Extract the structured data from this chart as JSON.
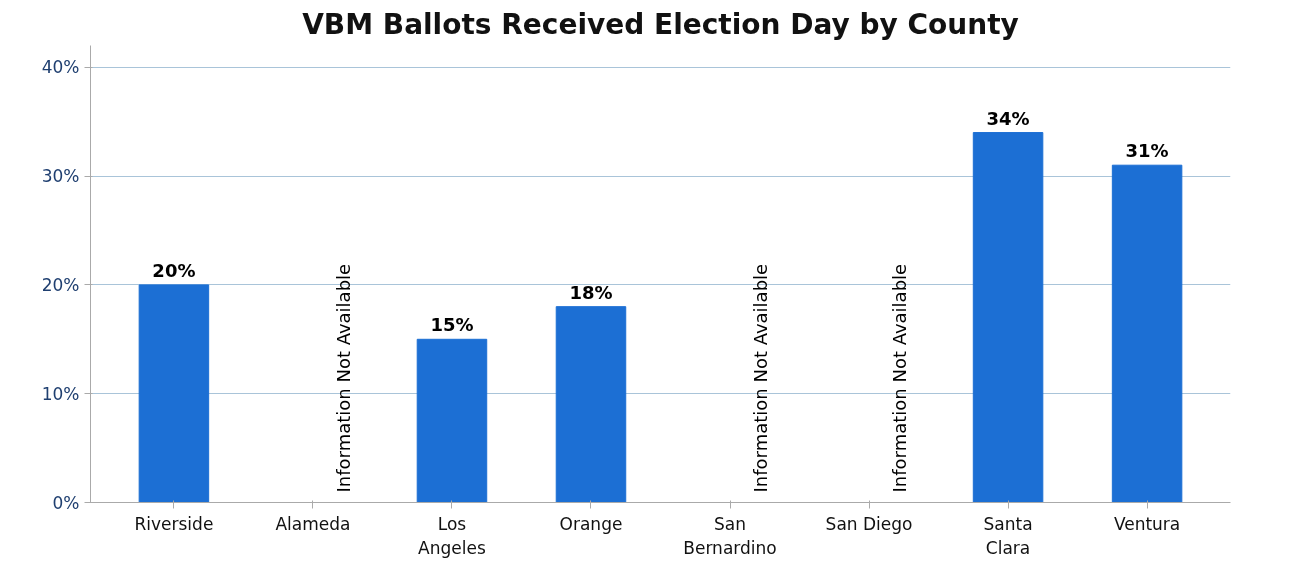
{
  "chart_data": {
    "type": "bar",
    "title": "VBM Ballots Received Election Day by County",
    "categories": [
      "Riverside",
      "Alameda",
      "Los\nAngeles",
      "Orange",
      "San\nBernardino",
      "San Diego",
      "Santa\nClara",
      "Ventura"
    ],
    "values": [
      20,
      null,
      15,
      18,
      null,
      null,
      34,
      31
    ],
    "value_labels": [
      "20%",
      null,
      "15%",
      "18%",
      null,
      null,
      "34%",
      "31%"
    ],
    "color": "#1c6fd4",
    "ylim": [
      0,
      42
    ],
    "yticks": [
      {
        "value": 0,
        "label": "0%"
      },
      {
        "value": 10,
        "label": "10%"
      },
      {
        "value": 20,
        "label": "20%"
      },
      {
        "value": 30,
        "label": "30%"
      },
      {
        "value": 40,
        "label": "40%"
      }
    ],
    "grid": "y",
    "annotations": [
      "Information Not Available",
      "Information Not Available",
      "Information Not Available"
    ]
  }
}
